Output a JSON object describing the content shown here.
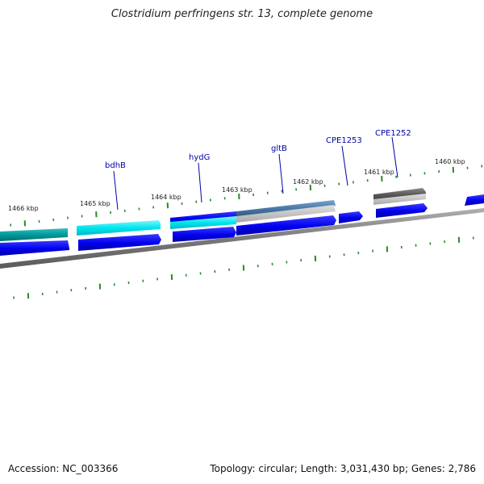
{
  "title": "Clostridium perfringens str. 13, complete genome",
  "footer": {
    "accession": "Accession: NC_003366",
    "info": "Topology: circular; Length: 3,031,430 bp; Genes: 2,786"
  },
  "colors": {
    "tick": "#2a8a2a",
    "backbone": "#808080",
    "cds_dark": "#0000ee",
    "cds_cyan": "#00e5ee",
    "cds_teal": "#009a9a",
    "cds_steel": "#4a78a8",
    "cds_gray": "#555555",
    "label": "#0000aa"
  },
  "scale_labels": [
    "1466 kbp",
    "1465 kbp",
    "1464 kbp",
    "1463 kbp",
    "1462 kbp",
    "1461 kbp",
    "1460 kbp"
  ],
  "gene_labels": [
    "bdhB",
    "hydG",
    "gltB",
    "CPE1253",
    "CPE1252"
  ]
}
